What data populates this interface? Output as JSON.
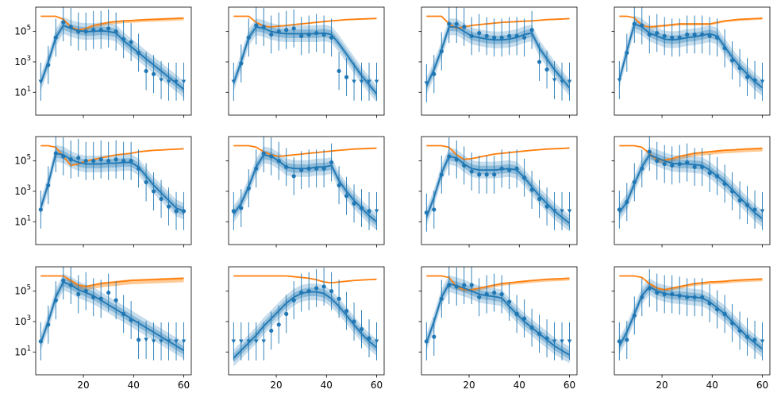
{
  "chart_data": {
    "type": "scatter",
    "layout": {
      "rows": 3,
      "cols": 4,
      "sharex": true,
      "sharey": true
    },
    "xlim": [
      1,
      63
    ],
    "ylim_log10": [
      -0.5,
      6.6
    ],
    "yscale": "log",
    "x_ticks": [
      20,
      40,
      60
    ],
    "x_tick_labels": [
      "20",
      "40",
      "60"
    ],
    "y_ticks_log10": [
      1,
      3,
      5
    ],
    "colors": {
      "data": "#1f77b4",
      "model": "#1f77b4",
      "band": "#1f77b4",
      "susceptible": "#ff7f0e",
      "susceptible_band": "#ffbb78"
    },
    "x_points": [
      3,
      6,
      9,
      12,
      15,
      18,
      21,
      24,
      27,
      30,
      33,
      36,
      39,
      42,
      45,
      48,
      51,
      54,
      57,
      60
    ],
    "panels": [
      {
        "obs_log10": [
          1.7,
          2.8,
          4.6,
          5.6,
          5.3,
          5.0,
          5.0,
          5.1,
          5.1,
          5.2,
          5.0,
          4.5,
          4.3,
          3.6,
          2.4,
          2.2,
          1.8,
          1.7,
          1.7,
          1.7
        ],
        "censored": [
          true,
          false,
          false,
          false,
          false,
          false,
          false,
          false,
          false,
          false,
          false,
          false,
          false,
          false,
          false,
          false,
          true,
          true,
          true,
          true
        ],
        "model_log10": [
          1.6,
          3.0,
          4.6,
          5.4,
          5.2,
          5.05,
          5.0,
          5.0,
          5.05,
          5.0,
          4.9,
          4.4,
          4.0,
          3.6,
          3.2,
          2.8,
          2.4,
          2.0,
          1.6,
          1.2
        ],
        "susceptible_log10": [
          6.0,
          6.0,
          6.0,
          5.8,
          5.3,
          5.1,
          5.2,
          5.4,
          5.5,
          5.6,
          5.65,
          5.7,
          5.72,
          5.75,
          5.78,
          5.8,
          5.82,
          5.84,
          5.86,
          5.88
        ],
        "sus_spread": 0.15
      },
      {
        "obs_log10": [
          1.7,
          2.9,
          4.6,
          5.4,
          5.3,
          4.8,
          5.0,
          5.1,
          5.2,
          4.7,
          4.8,
          4.9,
          4.8,
          4.6,
          2.4,
          2.0,
          1.7,
          1.7,
          1.7,
          1.7
        ],
        "censored": [
          true,
          false,
          false,
          false,
          false,
          false,
          false,
          false,
          false,
          false,
          false,
          false,
          false,
          false,
          false,
          false,
          true,
          true,
          true,
          true
        ],
        "model_log10": [
          1.6,
          3.0,
          4.6,
          5.3,
          5.2,
          5.0,
          4.9,
          4.85,
          4.85,
          4.85,
          4.85,
          4.85,
          4.9,
          4.8,
          4.2,
          3.5,
          2.8,
          2.1,
          1.5,
          0.9
        ],
        "susceptible_log10": [
          6.0,
          6.0,
          6.0,
          5.6,
          5.35,
          5.3,
          5.35,
          5.4,
          5.45,
          5.5,
          5.55,
          5.6,
          5.65,
          5.7,
          5.74,
          5.78,
          5.8,
          5.82,
          5.84,
          5.86
        ],
        "sus_spread": 0.05
      },
      {
        "obs_log10": [
          1.6,
          2.2,
          3.7,
          5.5,
          5.5,
          5.3,
          4.7,
          4.9,
          4.7,
          4.6,
          4.6,
          4.7,
          4.7,
          4.6,
          5.1,
          3.0,
          2.5,
          1.8,
          1.7,
          1.7
        ],
        "censored": [
          true,
          false,
          false,
          false,
          false,
          false,
          false,
          false,
          false,
          false,
          false,
          false,
          false,
          false,
          false,
          false,
          false,
          true,
          true,
          true
        ],
        "model_log10": [
          1.4,
          2.5,
          3.8,
          5.3,
          5.3,
          5.0,
          4.7,
          4.6,
          4.5,
          4.45,
          4.45,
          4.5,
          4.6,
          4.8,
          4.9,
          3.9,
          3.2,
          2.5,
          1.9,
          1.3
        ],
        "susceptible_log10": [
          6.0,
          6.0,
          6.0,
          5.5,
          5.2,
          5.3,
          5.4,
          5.45,
          5.5,
          5.55,
          5.6,
          5.62,
          5.65,
          5.68,
          5.7,
          5.74,
          5.78,
          5.8,
          5.82,
          5.85
        ],
        "sus_spread": 0.05
      },
      {
        "obs_log10": [
          1.8,
          3.6,
          5.5,
          5.4,
          4.8,
          4.9,
          4.7,
          4.6,
          4.6,
          4.8,
          4.8,
          4.8,
          4.7,
          4.6,
          3.9,
          3.1,
          2.6,
          2.0,
          1.8,
          1.7
        ],
        "censored": [
          true,
          false,
          false,
          false,
          false,
          false,
          false,
          false,
          false,
          false,
          false,
          false,
          false,
          false,
          false,
          false,
          false,
          false,
          false,
          true
        ],
        "model_log10": [
          1.8,
          3.7,
          5.5,
          5.3,
          4.9,
          4.7,
          4.5,
          4.45,
          4.5,
          4.6,
          4.65,
          4.75,
          4.85,
          4.7,
          4.0,
          3.3,
          2.7,
          2.2,
          1.7,
          1.3
        ],
        "susceptible_log10": [
          6.0,
          6.0,
          5.9,
          5.4,
          5.3,
          5.35,
          5.4,
          5.45,
          5.5,
          5.5,
          5.5,
          5.5,
          5.5,
          5.6,
          5.7,
          5.75,
          5.8,
          5.82,
          5.85,
          5.87
        ],
        "sus_spread": 0.1
      },
      {
        "obs_log10": [
          1.8,
          3.4,
          5.5,
          5.3,
          5.1,
          5.2,
          5.0,
          5.0,
          5.1,
          5.0,
          5.1,
          5.0,
          5.0,
          4.5,
          3.6,
          3.0,
          2.5,
          2.0,
          1.7,
          1.7
        ],
        "censored": [
          false,
          false,
          false,
          false,
          false,
          false,
          false,
          false,
          false,
          false,
          false,
          false,
          false,
          false,
          false,
          false,
          false,
          false,
          false,
          false
        ],
        "model_log10": [
          1.9,
          3.5,
          5.5,
          5.4,
          5.1,
          4.9,
          4.8,
          4.8,
          4.8,
          4.85,
          4.85,
          4.9,
          4.9,
          4.6,
          4.0,
          3.4,
          2.9,
          2.4,
          1.9,
          1.7
        ],
        "susceptible_log10": [
          6.0,
          6.0,
          5.9,
          5.3,
          4.7,
          4.8,
          5.0,
          5.1,
          5.2,
          5.3,
          5.4,
          5.45,
          5.5,
          5.6,
          5.65,
          5.7,
          5.72,
          5.75,
          5.77,
          5.8
        ],
        "sus_spread": 0.05
      },
      {
        "obs_log10": [
          1.7,
          1.9,
          3.2,
          4.5,
          5.5,
          5.3,
          5.0,
          4.6,
          4.0,
          4.4,
          4.5,
          4.5,
          4.5,
          4.9,
          3.4,
          2.7,
          2.2,
          1.9,
          1.7,
          1.7
        ],
        "censored": [
          false,
          false,
          false,
          false,
          false,
          false,
          false,
          false,
          false,
          false,
          false,
          false,
          false,
          false,
          false,
          false,
          false,
          false,
          false,
          true
        ],
        "model_log10": [
          1.5,
          2.2,
          3.3,
          4.6,
          5.4,
          5.3,
          5.0,
          4.6,
          4.5,
          4.5,
          4.5,
          4.6,
          4.6,
          4.7,
          3.7,
          3.0,
          2.4,
          1.9,
          1.4,
          1.0
        ],
        "susceptible_log10": [
          6.0,
          6.0,
          6.0,
          5.9,
          5.6,
          5.4,
          5.3,
          5.35,
          5.4,
          5.45,
          5.5,
          5.55,
          5.6,
          5.65,
          5.7,
          5.74,
          5.78,
          5.8,
          5.82,
          5.84
        ],
        "sus_spread": 0.05
      },
      {
        "obs_log10": [
          1.6,
          1.8,
          4.1,
          5.3,
          5.1,
          4.7,
          4.3,
          4.1,
          4.1,
          4.1,
          4.5,
          4.4,
          4.5,
          3.9,
          3.1,
          2.5,
          2.0,
          1.7,
          1.7,
          1.7
        ],
        "censored": [
          false,
          false,
          false,
          false,
          false,
          false,
          false,
          false,
          false,
          false,
          false,
          false,
          false,
          false,
          false,
          false,
          false,
          true,
          true,
          true
        ],
        "model_log10": [
          1.3,
          2.6,
          4.2,
          5.3,
          5.2,
          4.8,
          4.5,
          4.4,
          4.4,
          4.4,
          4.45,
          4.5,
          4.4,
          3.9,
          3.3,
          2.7,
          2.2,
          1.7,
          1.3,
          0.9
        ],
        "susceptible_log10": [
          6.0,
          6.0,
          6.0,
          5.9,
          5.4,
          5.1,
          5.15,
          5.25,
          5.35,
          5.45,
          5.5,
          5.55,
          5.6,
          5.65,
          5.7,
          5.74,
          5.78,
          5.8,
          5.82,
          5.85
        ],
        "sus_spread": 0.05
      },
      {
        "obs_log10": [
          1.8,
          2.3,
          3.6,
          4.5,
          5.6,
          5.0,
          4.8,
          4.7,
          4.8,
          4.9,
          4.6,
          4.6,
          4.2,
          4.0,
          3.5,
          3.0,
          2.4,
          2.1,
          1.8,
          1.7
        ],
        "censored": [
          false,
          false,
          false,
          false,
          false,
          false,
          false,
          false,
          false,
          false,
          false,
          false,
          false,
          false,
          false,
          false,
          false,
          false,
          false,
          true
        ],
        "model_log10": [
          1.6,
          2.3,
          3.5,
          4.6,
          5.4,
          5.2,
          5.0,
          4.85,
          4.8,
          4.8,
          4.75,
          4.7,
          4.4,
          4.0,
          3.6,
          3.1,
          2.6,
          2.1,
          1.6,
          1.2
        ],
        "susceptible_log10": [
          6.0,
          6.0,
          6.0,
          5.9,
          5.5,
          5.1,
          5.05,
          5.15,
          5.3,
          5.4,
          5.5,
          5.55,
          5.6,
          5.65,
          5.7,
          5.72,
          5.75,
          5.78,
          5.8,
          5.82
        ],
        "sus_spread": 0.2
      },
      {
        "obs_log10": [
          1.7,
          2.8,
          4.4,
          5.7,
          5.4,
          4.8,
          5.0,
          4.6,
          4.5,
          4.9,
          4.4,
          3.5,
          3.1,
          1.8,
          1.8,
          1.7,
          1.7,
          1.7,
          1.7,
          1.7
        ],
        "censored": [
          false,
          false,
          false,
          false,
          false,
          false,
          false,
          false,
          false,
          false,
          false,
          false,
          false,
          false,
          true,
          true,
          true,
          true,
          true,
          true
        ],
        "model_log10": [
          1.6,
          3.0,
          4.6,
          5.6,
          5.4,
          5.1,
          4.9,
          4.7,
          4.4,
          4.1,
          3.8,
          3.5,
          3.2,
          2.9,
          2.6,
          2.3,
          2.0,
          1.7,
          1.4,
          1.1
        ],
        "susceptible_log10": [
          6.0,
          6.0,
          6.0,
          6.0,
          5.7,
          5.4,
          5.3,
          5.4,
          5.5,
          5.55,
          5.6,
          5.65,
          5.7,
          5.72,
          5.74,
          5.76,
          5.78,
          5.8,
          5.82,
          5.84
        ],
        "sus_spread": 0.25
      },
      {
        "obs_log10": [
          1.7,
          1.7,
          1.7,
          1.7,
          1.7,
          2.4,
          2.8,
          3.5,
          4.4,
          4.9,
          5.0,
          5.2,
          5.3,
          5.0,
          4.5,
          3.7,
          3.0,
          2.5,
          1.9,
          1.7
        ],
        "censored": [
          true,
          true,
          true,
          true,
          true,
          false,
          false,
          false,
          false,
          false,
          false,
          false,
          false,
          false,
          false,
          false,
          false,
          false,
          false,
          true
        ],
        "model_log10": [
          0.6,
          1.1,
          1.6,
          2.1,
          2.7,
          3.2,
          3.7,
          4.2,
          4.6,
          4.85,
          4.95,
          4.95,
          4.85,
          4.5,
          4.0,
          3.4,
          2.8,
          2.2,
          1.7,
          1.3
        ],
        "susceptible_log10": [
          6.0,
          6.0,
          6.0,
          6.0,
          6.0,
          6.0,
          6.0,
          6.0,
          5.95,
          5.9,
          5.85,
          5.75,
          5.6,
          5.55,
          5.6,
          5.65,
          5.7,
          5.73,
          5.76,
          5.78
        ],
        "sus_spread": 0.03
      },
      {
        "obs_log10": [
          1.7,
          2.0,
          4.5,
          5.4,
          5.3,
          5.4,
          5.4,
          4.6,
          4.8,
          4.9,
          4.8,
          4.3,
          3.5,
          3.2,
          2.6,
          2.2,
          1.9,
          1.7,
          1.7,
          1.7
        ],
        "censored": [
          false,
          false,
          false,
          false,
          false,
          false,
          false,
          false,
          false,
          false,
          false,
          false,
          false,
          false,
          false,
          false,
          false,
          true,
          true,
          true
        ],
        "model_log10": [
          1.6,
          3.0,
          4.6,
          5.5,
          5.35,
          5.2,
          5.0,
          4.8,
          4.7,
          4.65,
          4.55,
          4.0,
          3.5,
          3.0,
          2.6,
          2.2,
          1.8,
          1.4,
          1.1,
          0.8
        ],
        "susceptible_log10": [
          6.0,
          6.0,
          6.0,
          5.9,
          5.3,
          5.1,
          5.1,
          5.2,
          5.3,
          5.4,
          5.5,
          5.55,
          5.6,
          5.65,
          5.7,
          5.74,
          5.78,
          5.8,
          5.82,
          5.85
        ],
        "sus_spread": 0.15
      },
      {
        "obs_log10": [
          1.7,
          1.8,
          3.4,
          4.6,
          5.2,
          4.9,
          4.8,
          4.8,
          4.7,
          4.6,
          4.6,
          4.6,
          4.2,
          3.8,
          3.5,
          2.9,
          2.4,
          2.0,
          1.8,
          1.7
        ],
        "censored": [
          false,
          false,
          false,
          false,
          false,
          false,
          false,
          false,
          false,
          false,
          false,
          false,
          false,
          false,
          false,
          false,
          false,
          false,
          false,
          true
        ],
        "model_log10": [
          1.4,
          2.3,
          3.5,
          4.7,
          5.3,
          5.0,
          4.85,
          4.75,
          4.7,
          4.65,
          4.6,
          4.55,
          4.3,
          3.9,
          3.5,
          3.0,
          2.5,
          2.0,
          1.6,
          1.2
        ],
        "susceptible_log10": [
          6.0,
          6.0,
          6.0,
          5.9,
          5.5,
          5.2,
          5.1,
          5.2,
          5.3,
          5.4,
          5.5,
          5.55,
          5.6,
          5.62,
          5.65,
          5.7,
          5.73,
          5.76,
          5.78,
          5.8
        ],
        "sus_spread": 0.15
      }
    ]
  }
}
